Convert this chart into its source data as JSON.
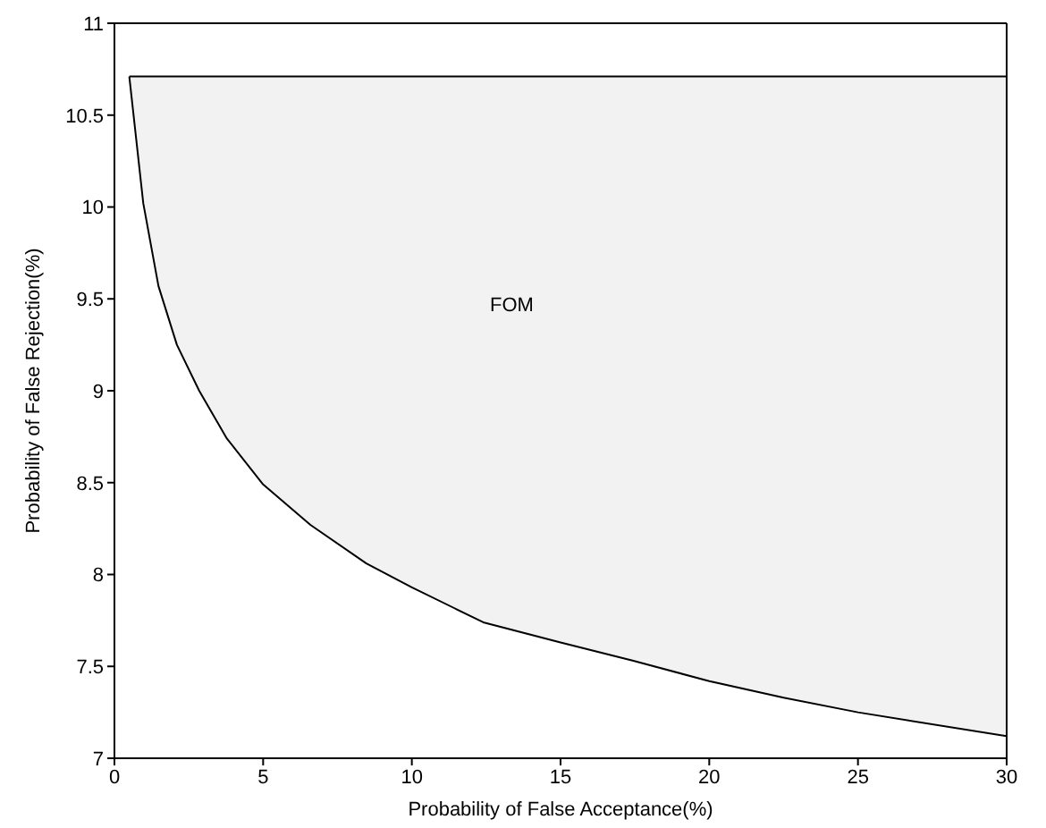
{
  "chart_data": {
    "type": "line",
    "xlabel": "Probability of False Acceptance(%)",
    "ylabel": "Probability of False Rejection(%)",
    "x": [
      0.5,
      0.97,
      1.48,
      2.1,
      2.85,
      3.78,
      5,
      6.59,
      8.47,
      10,
      12.4,
      15,
      17.45,
      20,
      22.5,
      25,
      30
    ],
    "series": [
      {
        "color": "#000000",
        "values": [
          10.71,
          10.02,
          9.57,
          9.25,
          9,
          8.74,
          8.49,
          8.27,
          8.06,
          7.93,
          7.74,
          7.63,
          7.53,
          7.42,
          7.33,
          7.25,
          7.12
        ],
        "lower": [
          10.71,
          10.02,
          9.57,
          9.25,
          9,
          8.74,
          8.49,
          8.27,
          8.06,
          7.93,
          7.74,
          7.63,
          7.53,
          7.42,
          7.33,
          7.25,
          7.12
        ],
        "upper": [
          10.71,
          10.71,
          10.71,
          10.71,
          10.71,
          10.71,
          10.71,
          10.71,
          10.71,
          10.71,
          10.71,
          10.71,
          10.71,
          10.71,
          10.71,
          10.71,
          10.71
        ]
      },
      {
        "color": "#000000",
        "values": [
          10.71,
          10.71,
          10.71,
          10.71,
          10.71,
          10.71,
          10.71,
          10.71,
          10.71,
          10.71,
          10.71,
          10.71,
          10.71,
          10.71,
          10.71,
          10.71,
          10.71
        ]
      }
    ],
    "xlim": [
      0,
      30
    ],
    "xticks": [
      0,
      5,
      10,
      15,
      20,
      25,
      30
    ],
    "ylim": [
      7,
      11
    ],
    "yticks": [
      7,
      7.5,
      8,
      8.5,
      9,
      9.5,
      10,
      10.5,
      11
    ],
    "annotations": [
      "FOM"
    ],
    "grid": false,
    "legend": false
  }
}
